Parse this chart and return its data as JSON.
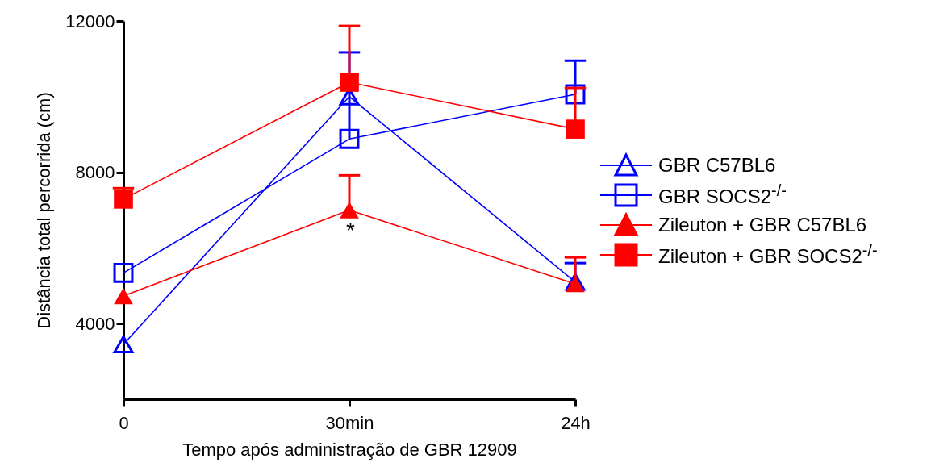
{
  "chart_data": {
    "type": "line",
    "xlabel": "Tempo após administração de GBR 12909",
    "ylabel": "Distância total percorrida (cm)",
    "categories": [
      "0",
      "30min",
      "24h"
    ],
    "series": [
      {
        "name": "GBR C57BL6",
        "color": "#0000ff",
        "marker": "triangle",
        "values": [
          3450,
          10000,
          5100
        ],
        "errors": [
          null,
          null,
          [
            5100,
            5600
          ]
        ]
      },
      {
        "name": "GBR SOCS2$^{-/-}$",
        "color": "#0000ff",
        "marker": "square",
        "values": [
          5340,
          8880,
          10060
        ],
        "errors": [
          null,
          [
            8880,
            11170
          ],
          [
            10060,
            10950
          ]
        ]
      },
      {
        "name": "Zileuton + GBR C57BL6",
        "color": "#ff0000",
        "marker": "triangle",
        "values": [
          4730,
          7000,
          5050
        ],
        "errors": [
          null,
          [
            7000,
            7920
          ],
          [
            5050,
            5750
          ]
        ]
      },
      {
        "name": "Zileuton + GBR SOCS2$^{-/-}$",
        "color": "#ff0000",
        "marker": "square",
        "values": [
          7290,
          10380,
          9140
        ],
        "errors": [
          [
            7290,
            7580
          ],
          [
            10380,
            11870
          ],
          [
            9140,
            10230
          ]
        ]
      }
    ],
    "ylim": [
      2000,
      12000
    ],
    "yticks": [
      4000,
      8000,
      12000
    ],
    "grid": false,
    "legend": "right",
    "annotations": [
      "*"
    ]
  }
}
